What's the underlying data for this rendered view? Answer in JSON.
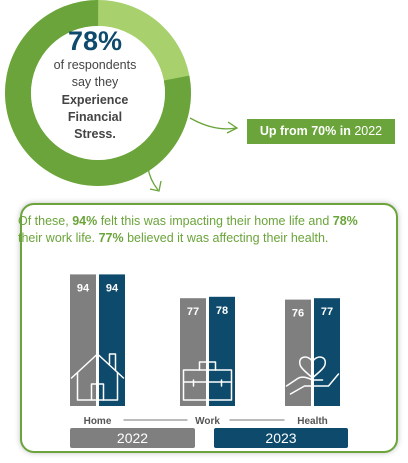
{
  "donut": {
    "value": 78,
    "percent_label": "78%",
    "line1": "of respondents",
    "line2": "say they",
    "line3": "Experience",
    "line4": "Financial",
    "line5": "Stress.",
    "color_main": "#6aa43a",
    "color_rest": "#a8d06d"
  },
  "callout": {
    "prefix": "Up from 70% in ",
    "bold": "Up from 70% in",
    "year": "2022"
  },
  "panel": {
    "t1": "Of these, ",
    "b1": "94%",
    "t2": " felt this was impacting their home life and ",
    "b2": "78%",
    "t3": " their work life. ",
    "b3": "77%",
    "t4": " believed it was affecting their health."
  },
  "chart_data": {
    "type": "bar",
    "categories": [
      "Home",
      "Work",
      "Health"
    ],
    "series": [
      {
        "name": "2022",
        "values": [
          94,
          77,
          76
        ],
        "color": "#7f7f7f"
      },
      {
        "name": "2023",
        "values": [
          94,
          78,
          77
        ],
        "color": "#0d4a6b"
      }
    ],
    "ylim": [
      0,
      100
    ],
    "icons": [
      "house-icon",
      "briefcase-icon",
      "heart-hand-icon"
    ]
  },
  "legend": {
    "y2022": "2022",
    "y2023": "2023"
  }
}
